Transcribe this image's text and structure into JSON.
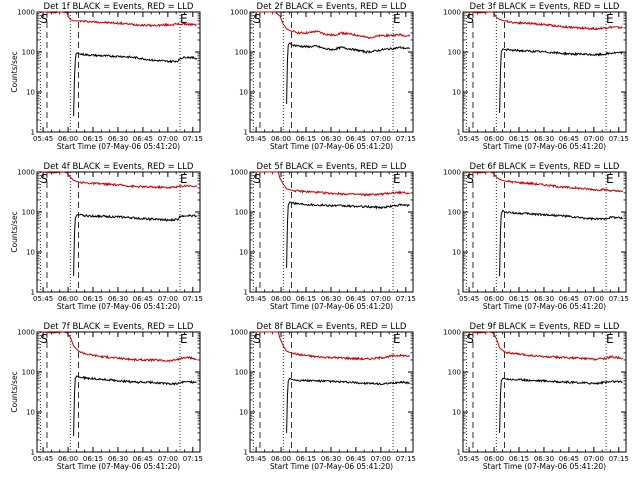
{
  "chart_data": [
    {
      "type": "line",
      "title": "Det 1f BLACK = Events, RED = LLD",
      "xlabel": "Start Time (07-May-06 05:41:20)",
      "ylabel": "Counts/sec",
      "x_ticks": [
        "05:45",
        "06:00",
        "06:15",
        "06:30",
        "06:45",
        "07:00",
        "07:15"
      ],
      "y_ticks": [
        "1",
        "10",
        "100",
        "1000"
      ],
      "xlim_minutes": [
        0,
        98
      ],
      "ylim": [
        1,
        1000
      ],
      "y_scale": "log",
      "markers": [
        {
          "label": "S",
          "x": 2
        },
        {
          "label": "E",
          "x": 86
        }
      ],
      "dotted_lines": [
        2,
        20,
        86
      ],
      "dashed_lines": [
        6,
        25
      ],
      "series": [
        {
          "name": "LLD",
          "color": "#cc0000",
          "x": [
            3,
            5,
            11,
            13,
            15,
            18,
            19,
            20,
            22,
            25,
            30,
            40,
            50,
            60,
            70,
            80,
            85,
            90,
            96
          ],
          "y": [
            1000,
            1000,
            950,
            1000,
            1000,
            950,
            750,
            650,
            600,
            600,
            580,
            550,
            520,
            480,
            460,
            480,
            500,
            500,
            470
          ]
        },
        {
          "name": "Events",
          "color": "#000000",
          "x": [
            22,
            22.5,
            23,
            23.5,
            24,
            25,
            30,
            40,
            50,
            60,
            70,
            80,
            85,
            86,
            90,
            96
          ],
          "y": [
            2.5,
            20,
            60,
            90,
            95,
            90,
            85,
            80,
            78,
            72,
            62,
            58,
            60,
            70,
            75,
            70
          ]
        }
      ]
    },
    {
      "type": "line",
      "title": "Det 2f BLACK = Events, RED = LLD",
      "xlabel": "Start Time (07-May-06 05:41:20)",
      "ylabel": "",
      "x_ticks": [
        "05:45",
        "06:00",
        "06:15",
        "06:30",
        "06:45",
        "07:00",
        "07:15"
      ],
      "y_ticks": [
        "1",
        "10",
        "100",
        "1000"
      ],
      "xlim_minutes": [
        0,
        98
      ],
      "ylim": [
        1,
        1000
      ],
      "y_scale": "log",
      "markers": [
        {
          "label": "S",
          "x": 2
        },
        {
          "label": "E",
          "x": 86
        }
      ],
      "dotted_lines": [
        2,
        20,
        86
      ],
      "dashed_lines": [
        6,
        25
      ],
      "series": [
        {
          "name": "LLD",
          "color": "#cc0000",
          "x": [
            3,
            8,
            15,
            18,
            20,
            22,
            25,
            30,
            35,
            40,
            45,
            50,
            55,
            60,
            65,
            70,
            75,
            80,
            85,
            90,
            96
          ],
          "y": [
            1000,
            1000,
            1000,
            800,
            500,
            380,
            330,
            300,
            300,
            330,
            280,
            260,
            300,
            280,
            260,
            230,
            240,
            260,
            260,
            270,
            250
          ]
        },
        {
          "name": "Events",
          "color": "#000000",
          "x": [
            22,
            22.5,
            23,
            24,
            25,
            30,
            35,
            40,
            45,
            50,
            55,
            60,
            65,
            70,
            75,
            80,
            85,
            90,
            96
          ],
          "y": [
            5,
            60,
            150,
            170,
            150,
            140,
            135,
            140,
            120,
            115,
            130,
            120,
            110,
            100,
            105,
            115,
            120,
            130,
            120
          ]
        }
      ]
    },
    {
      "type": "line",
      "title": "Det 3f BLACK = Events, RED = LLD",
      "xlabel": "Start Time (07-May-06 05:41:20)",
      "ylabel": "",
      "x_ticks": [
        "05:45",
        "06:00",
        "06:15",
        "06:30",
        "06:45",
        "07:00",
        "07:15"
      ],
      "y_ticks": [
        "1",
        "10",
        "100",
        "1000"
      ],
      "xlim_minutes": [
        0,
        98
      ],
      "ylim": [
        1,
        1000
      ],
      "y_scale": "log",
      "markers": [
        {
          "label": "S",
          "x": 2
        },
        {
          "label": "E",
          "x": 86
        }
      ],
      "dotted_lines": [
        2,
        20,
        86
      ],
      "dashed_lines": [
        6,
        25
      ],
      "series": [
        {
          "name": "LLD",
          "color": "#cc0000",
          "x": [
            3,
            10,
            16,
            18,
            20,
            22,
            25,
            30,
            40,
            50,
            60,
            70,
            80,
            85,
            90,
            96
          ],
          "y": [
            1000,
            950,
            1000,
            1000,
            750,
            650,
            600,
            550,
            520,
            480,
            430,
            400,
            380,
            400,
            420,
            400
          ]
        },
        {
          "name": "Events",
          "color": "#000000",
          "x": [
            22,
            22.5,
            23,
            24,
            25,
            30,
            40,
            50,
            60,
            70,
            80,
            85,
            90,
            96
          ],
          "y": [
            3,
            30,
            100,
            120,
            115,
            110,
            105,
            100,
            92,
            88,
            85,
            88,
            95,
            95
          ]
        }
      ]
    },
    {
      "type": "line",
      "title": "Det 4f BLACK = Events, RED = LLD",
      "xlabel": "Start Time (07-May-06 05:41:20)",
      "ylabel": "Counts/sec",
      "x_ticks": [
        "05:45",
        "06:00",
        "06:15",
        "06:30",
        "06:45",
        "07:00",
        "07:15"
      ],
      "y_ticks": [
        "1",
        "10",
        "100",
        "1000"
      ],
      "xlim_minutes": [
        0,
        98
      ],
      "ylim": [
        1,
        1000
      ],
      "y_scale": "log",
      "markers": [
        {
          "label": "S",
          "x": 2
        },
        {
          "label": "E",
          "x": 86
        }
      ],
      "dotted_lines": [
        2,
        20,
        86
      ],
      "dashed_lines": [
        6,
        25
      ],
      "series": [
        {
          "name": "LLD",
          "color": "#cc0000",
          "x": [
            3,
            10,
            16,
            18,
            20,
            22,
            25,
            30,
            40,
            50,
            60,
            70,
            80,
            85,
            90,
            96
          ],
          "y": [
            1000,
            950,
            1000,
            950,
            750,
            620,
            560,
            530,
            500,
            470,
            430,
            420,
            410,
            430,
            460,
            430
          ]
        },
        {
          "name": "Events",
          "color": "#000000",
          "x": [
            22,
            22.5,
            23,
            24,
            25,
            30,
            40,
            50,
            60,
            70,
            80,
            85,
            86,
            90,
            96
          ],
          "y": [
            2.5,
            25,
            70,
            85,
            85,
            80,
            78,
            75,
            70,
            66,
            62,
            66,
            80,
            82,
            80
          ]
        }
      ]
    },
    {
      "type": "line",
      "title": "Det 5f BLACK = Events, RED = LLD",
      "xlabel": "Start Time (07-May-06 05:41:20)",
      "ylabel": "",
      "x_ticks": [
        "05:45",
        "06:00",
        "06:15",
        "06:30",
        "06:45",
        "07:00",
        "07:15"
      ],
      "y_ticks": [
        "1",
        "10",
        "100",
        "1000"
      ],
      "xlim_minutes": [
        0,
        98
      ],
      "ylim": [
        1,
        1000
      ],
      "y_scale": "log",
      "markers": [
        {
          "label": "S",
          "x": 2
        },
        {
          "label": "E",
          "x": 86
        }
      ],
      "dotted_lines": [
        2,
        20,
        86
      ],
      "dashed_lines": [
        6,
        25
      ],
      "series": [
        {
          "name": "LLD",
          "color": "#cc0000",
          "x": [
            3,
            8,
            16,
            17,
            18,
            20,
            22,
            25,
            30,
            40,
            50,
            60,
            70,
            80,
            85,
            90,
            96
          ],
          "y": [
            1000,
            1000,
            1000,
            1000,
            700,
            500,
            380,
            350,
            330,
            310,
            290,
            280,
            270,
            280,
            300,
            310,
            290
          ]
        },
        {
          "name": "Events",
          "color": "#000000",
          "x": [
            22,
            22.5,
            23,
            24,
            25,
            30,
            40,
            50,
            60,
            70,
            80,
            85,
            90,
            96
          ],
          "y": [
            4,
            50,
            150,
            180,
            170,
            160,
            150,
            145,
            140,
            135,
            130,
            140,
            150,
            145
          ]
        }
      ]
    },
    {
      "type": "line",
      "title": "Det 6f BLACK = Events, RED = LLD",
      "xlabel": "Start Time (07-May-06 05:41:20)",
      "ylabel": "",
      "x_ticks": [
        "05:45",
        "06:00",
        "06:15",
        "06:30",
        "06:45",
        "07:00",
        "07:15"
      ],
      "y_ticks": [
        "1",
        "10",
        "100",
        "1000"
      ],
      "xlim_minutes": [
        0,
        98
      ],
      "ylim": [
        1,
        1000
      ],
      "y_scale": "log",
      "markers": [
        {
          "label": "S",
          "x": 2
        },
        {
          "label": "E",
          "x": 86
        }
      ],
      "dotted_lines": [
        2,
        20,
        86
      ],
      "dashed_lines": [
        6,
        25
      ],
      "series": [
        {
          "name": "LLD",
          "color": "#cc0000",
          "x": [
            3,
            10,
            16,
            18,
            20,
            22,
            25,
            30,
            40,
            50,
            60,
            70,
            80,
            85,
            90,
            96
          ],
          "y": [
            1000,
            950,
            1000,
            950,
            760,
            650,
            600,
            560,
            520,
            470,
            420,
            390,
            360,
            360,
            340,
            320
          ]
        },
        {
          "name": "Events",
          "color": "#000000",
          "x": [
            22,
            22.5,
            23,
            24,
            25,
            30,
            40,
            50,
            60,
            70,
            80,
            85,
            90,
            96
          ],
          "y": [
            2.5,
            30,
            90,
            110,
            100,
            95,
            90,
            85,
            80,
            72,
            66,
            68,
            75,
            70
          ]
        }
      ]
    },
    {
      "type": "line",
      "title": "Det 7f BLACK = Events, RED = LLD",
      "xlabel": "Start Time (07-May-06 05:41:20)",
      "ylabel": "Counts/sec",
      "x_ticks": [
        "05:45",
        "06:00",
        "06:15",
        "06:30",
        "06:45",
        "07:00",
        "07:15"
      ],
      "y_ticks": [
        "1",
        "10",
        "100",
        "1000"
      ],
      "xlim_minutes": [
        0,
        98
      ],
      "ylim": [
        1,
        1000
      ],
      "y_scale": "log",
      "markers": [
        {
          "label": "S",
          "x": 2
        },
        {
          "label": "E",
          "x": 86
        }
      ],
      "dotted_lines": [
        2,
        20,
        86
      ],
      "dashed_lines": [
        6,
        25
      ],
      "series": [
        {
          "name": "LLD",
          "color": "#cc0000",
          "x": [
            3,
            10,
            16,
            18,
            20,
            22,
            25,
            30,
            40,
            50,
            60,
            70,
            80,
            85,
            90,
            96
          ],
          "y": [
            1000,
            950,
            1000,
            950,
            750,
            450,
            330,
            280,
            240,
            220,
            200,
            200,
            190,
            210,
            230,
            210
          ]
        },
        {
          "name": "Events",
          "color": "#000000",
          "x": [
            22,
            22.5,
            23,
            24,
            25,
            30,
            40,
            50,
            60,
            70,
            80,
            85,
            90,
            96
          ],
          "y": [
            2.5,
            25,
            70,
            80,
            75,
            70,
            65,
            60,
            55,
            55,
            50,
            52,
            58,
            55
          ]
        }
      ]
    },
    {
      "type": "line",
      "title": "Det 8f BLACK = Events, RED = LLD",
      "xlabel": "Start Time (07-May-06 05:41:20)",
      "ylabel": "",
      "x_ticks": [
        "05:45",
        "06:00",
        "06:15",
        "06:30",
        "06:45",
        "07:00",
        "07:15"
      ],
      "y_ticks": [
        "1",
        "10",
        "100",
        "1000"
      ],
      "xlim_minutes": [
        0,
        98
      ],
      "ylim": [
        1,
        1000
      ],
      "y_scale": "log",
      "markers": [
        {
          "label": "S",
          "x": 2
        },
        {
          "label": "E",
          "x": 86
        }
      ],
      "dotted_lines": [
        2,
        20,
        86
      ],
      "dashed_lines": [
        6,
        25
      ],
      "series": [
        {
          "name": "LLD",
          "color": "#cc0000",
          "x": [
            3,
            8,
            16,
            17,
            18,
            20,
            22,
            25,
            30,
            40,
            50,
            60,
            70,
            80,
            85,
            90,
            96
          ],
          "y": [
            1000,
            1000,
            1000,
            1000,
            700,
            450,
            330,
            300,
            270,
            240,
            230,
            220,
            210,
            230,
            250,
            260,
            250
          ]
        },
        {
          "name": "Events",
          "color": "#000000",
          "x": [
            22,
            22.5,
            23,
            24,
            25,
            30,
            40,
            50,
            60,
            70,
            80,
            85,
            90,
            96
          ],
          "y": [
            3,
            25,
            60,
            70,
            65,
            62,
            60,
            58,
            55,
            52,
            50,
            52,
            56,
            54
          ]
        }
      ]
    },
    {
      "type": "line",
      "title": "Det 9f BLACK = Events, RED = LLD",
      "xlabel": "Start Time (07-May-06 05:41:20)",
      "ylabel": "",
      "x_ticks": [
        "05:45",
        "06:00",
        "06:15",
        "06:30",
        "06:45",
        "07:00",
        "07:15"
      ],
      "y_ticks": [
        "1",
        "10",
        "100",
        "1000"
      ],
      "xlim_minutes": [
        0,
        98
      ],
      "ylim": [
        1,
        1000
      ],
      "y_scale": "log",
      "markers": [
        {
          "label": "S",
          "x": 2
        },
        {
          "label": "E",
          "x": 86
        }
      ],
      "dotted_lines": [
        2,
        20,
        86
      ],
      "dashed_lines": [
        6,
        25
      ],
      "series": [
        {
          "name": "LLD",
          "color": "#cc0000",
          "x": [
            3,
            10,
            16,
            18,
            20,
            22,
            25,
            30,
            40,
            50,
            60,
            70,
            80,
            85,
            90,
            96
          ],
          "y": [
            1000,
            950,
            1000,
            950,
            700,
            400,
            320,
            290,
            260,
            240,
            230,
            220,
            210,
            220,
            240,
            220
          ]
        },
        {
          "name": "Events",
          "color": "#000000",
          "x": [
            22,
            22.5,
            23,
            24,
            25,
            30,
            40,
            50,
            60,
            70,
            80,
            85,
            90,
            96
          ],
          "y": [
            3,
            25,
            60,
            70,
            68,
            65,
            62,
            60,
            56,
            54,
            52,
            55,
            58,
            56
          ]
        }
      ]
    }
  ]
}
